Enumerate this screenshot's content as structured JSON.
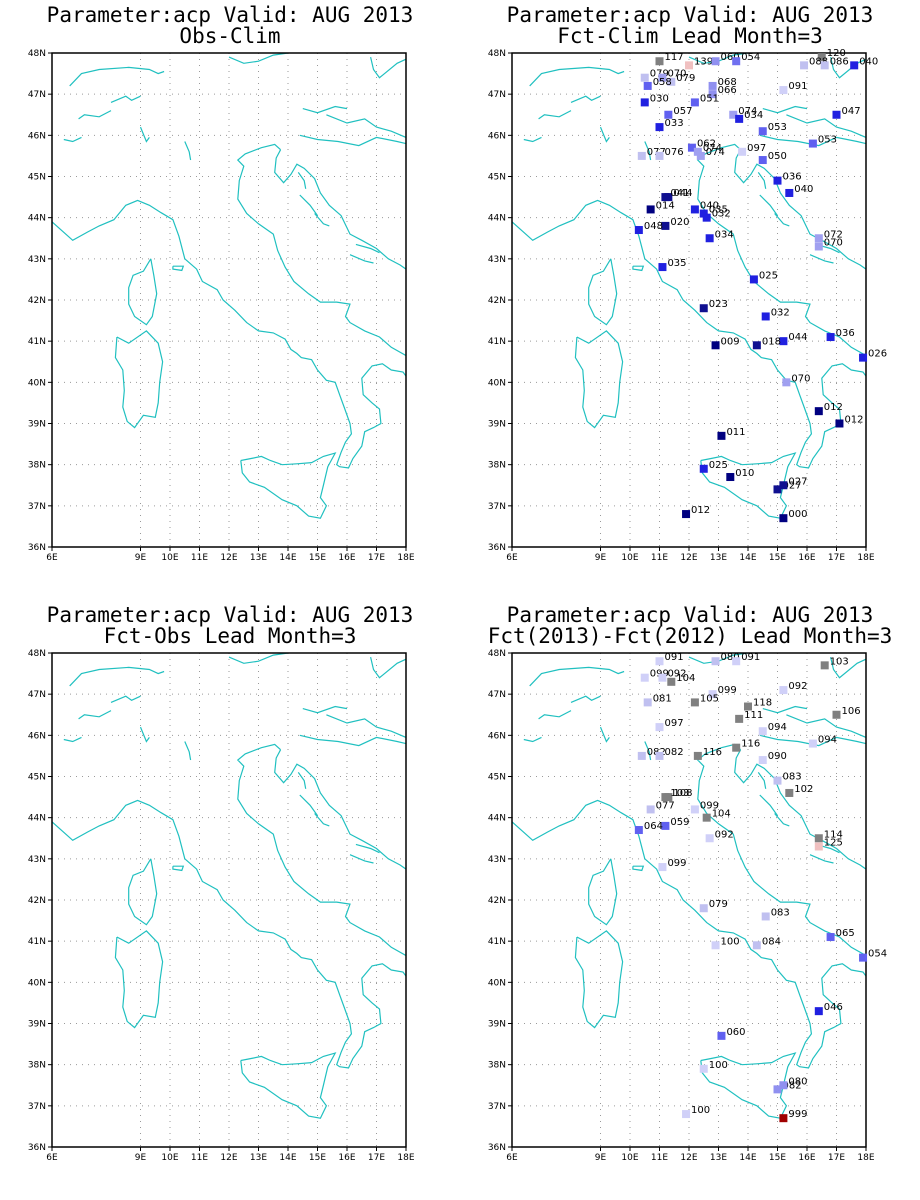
{
  "map": {
    "lon_range": [
      6,
      18
    ],
    "lat_range": [
      36,
      48
    ],
    "lon_ticks": [
      "6E",
      "9E",
      "10E",
      "11E",
      "12E",
      "13E",
      "14E",
      "15E",
      "16E",
      "17E",
      "18E"
    ],
    "lon_tick_values": [
      6,
      9,
      10,
      11,
      12,
      13,
      14,
      15,
      16,
      17,
      18
    ],
    "lat_ticks": [
      "36N",
      "37N",
      "38N",
      "39N",
      "40N",
      "41N",
      "42N",
      "43N",
      "44N",
      "45N",
      "46N",
      "47N",
      "48N"
    ],
    "lat_tick_values": [
      36,
      37,
      38,
      39,
      40,
      41,
      42,
      43,
      44,
      45,
      46,
      47,
      48
    ],
    "coast_color": "#20c0c0",
    "grid": "dotted"
  },
  "panels": [
    {
      "title1": "Parameter:acp Valid: AUG 2013",
      "title2": "Obs-Clim",
      "stations": []
    },
    {
      "title1": "Parameter:acp Valid: AUG 2013",
      "title2": "Fct-Clim Lead Month=3",
      "stations": [
        {
          "lon": 11.0,
          "lat": 47.8,
          "label": "117",
          "color": "#808080"
        },
        {
          "lon": 12.0,
          "lat": 47.7,
          "label": "139",
          "color": "#f0c0c0"
        },
        {
          "lon": 12.9,
          "lat": 47.8,
          "label": "060",
          "color": "#9090f0"
        },
        {
          "lon": 13.6,
          "lat": 47.8,
          "label": "054",
          "color": "#7070f0"
        },
        {
          "lon": 16.5,
          "lat": 47.9,
          "label": "120",
          "color": "#808080"
        },
        {
          "lon": 15.9,
          "lat": 47.7,
          "label": "088",
          "color": "#c0c0f0"
        },
        {
          "lon": 16.6,
          "lat": 47.7,
          "label": "086",
          "color": "#c0c0f0"
        },
        {
          "lon": 17.6,
          "lat": 47.7,
          "label": "040",
          "color": "#2020e0"
        },
        {
          "lon": 10.5,
          "lat": 47.4,
          "label": "079",
          "color": "#c0c0f0"
        },
        {
          "lon": 11.1,
          "lat": 47.4,
          "label": "070",
          "color": "#a0a0f0"
        },
        {
          "lon": 11.4,
          "lat": 47.3,
          "label": "079",
          "color": "#c0c0f0"
        },
        {
          "lon": 10.6,
          "lat": 47.2,
          "label": "058",
          "color": "#6060f0"
        },
        {
          "lon": 12.8,
          "lat": 47.2,
          "label": "068",
          "color": "#9090f0"
        },
        {
          "lon": 12.8,
          "lat": 47.0,
          "label": "066",
          "color": "#9090f0"
        },
        {
          "lon": 15.2,
          "lat": 47.1,
          "label": "091",
          "color": "#d0d0f8"
        },
        {
          "lon": 10.5,
          "lat": 46.8,
          "label": "030",
          "color": "#2020e0"
        },
        {
          "lon": 12.2,
          "lat": 46.8,
          "label": "051",
          "color": "#6060f0"
        },
        {
          "lon": 11.3,
          "lat": 46.5,
          "label": "057",
          "color": "#6060f0"
        },
        {
          "lon": 13.5,
          "lat": 46.5,
          "label": "074",
          "color": "#a0a0f0"
        },
        {
          "lon": 13.7,
          "lat": 46.4,
          "label": "034",
          "color": "#2020e0"
        },
        {
          "lon": 17.0,
          "lat": 46.5,
          "label": "047",
          "color": "#2020e0"
        },
        {
          "lon": 11.0,
          "lat": 46.2,
          "label": "033",
          "color": "#2020e0"
        },
        {
          "lon": 14.5,
          "lat": 46.1,
          "label": "053",
          "color": "#6060f0"
        },
        {
          "lon": 16.2,
          "lat": 45.8,
          "label": "053",
          "color": "#6060f0"
        },
        {
          "lon": 12.1,
          "lat": 45.7,
          "label": "062",
          "color": "#6060f0"
        },
        {
          "lon": 12.3,
          "lat": 45.6,
          "label": "074",
          "color": "#a0a0f0"
        },
        {
          "lon": 12.4,
          "lat": 45.5,
          "label": "074",
          "color": "#a0a0f0"
        },
        {
          "lon": 13.8,
          "lat": 45.6,
          "label": "097",
          "color": "#d0d0f8"
        },
        {
          "lon": 10.4,
          "lat": 45.5,
          "label": "077",
          "color": "#c0c0f0"
        },
        {
          "lon": 11.0,
          "lat": 45.5,
          "label": "076",
          "color": "#c0c0f0"
        },
        {
          "lon": 14.5,
          "lat": 45.4,
          "label": "050",
          "color": "#6060f0"
        },
        {
          "lon": 15.0,
          "lat": 44.9,
          "label": "036",
          "color": "#2020e0"
        },
        {
          "lon": 15.4,
          "lat": 44.6,
          "label": "040",
          "color": "#2020e0"
        },
        {
          "lon": 11.3,
          "lat": 44.5,
          "label": "044",
          "color": "#101090"
        },
        {
          "lon": 11.2,
          "lat": 44.5,
          "label": "041",
          "color": "#101090"
        },
        {
          "lon": 10.7,
          "lat": 44.2,
          "label": "014",
          "color": "#000080"
        },
        {
          "lon": 12.2,
          "lat": 44.2,
          "label": "040",
          "color": "#2020e0"
        },
        {
          "lon": 12.5,
          "lat": 44.1,
          "label": "035",
          "color": "#2020e0"
        },
        {
          "lon": 12.6,
          "lat": 44.0,
          "label": "032",
          "color": "#2020e0"
        },
        {
          "lon": 11.2,
          "lat": 43.8,
          "label": "020",
          "color": "#101090"
        },
        {
          "lon": 10.3,
          "lat": 43.7,
          "label": "048",
          "color": "#2020e0"
        },
        {
          "lon": 12.7,
          "lat": 43.5,
          "label": "034",
          "color": "#2020e0"
        },
        {
          "lon": 16.4,
          "lat": 43.5,
          "label": "072",
          "color": "#a0a0f0"
        },
        {
          "lon": 16.4,
          "lat": 43.3,
          "label": "070",
          "color": "#a0a0f0"
        },
        {
          "lon": 11.1,
          "lat": 42.8,
          "label": "035",
          "color": "#2020e0"
        },
        {
          "lon": 14.2,
          "lat": 42.5,
          "label": "025",
          "color": "#2020e0"
        },
        {
          "lon": 12.5,
          "lat": 41.8,
          "label": "023",
          "color": "#101090"
        },
        {
          "lon": 14.6,
          "lat": 41.6,
          "label": "032",
          "color": "#2020e0"
        },
        {
          "lon": 16.8,
          "lat": 41.1,
          "label": "036",
          "color": "#2020e0"
        },
        {
          "lon": 15.2,
          "lat": 41.0,
          "label": "044",
          "color": "#2020e0"
        },
        {
          "lon": 12.9,
          "lat": 40.9,
          "label": "009",
          "color": "#000080"
        },
        {
          "lon": 14.3,
          "lat": 40.9,
          "label": "018",
          "color": "#101090"
        },
        {
          "lon": 17.9,
          "lat": 40.6,
          "label": "026",
          "color": "#2020e0"
        },
        {
          "lon": 15.3,
          "lat": 40.0,
          "label": "070",
          "color": "#a0a0f0"
        },
        {
          "lon": 16.4,
          "lat": 39.3,
          "label": "012",
          "color": "#000080"
        },
        {
          "lon": 17.1,
          "lat": 39.0,
          "label": "012",
          "color": "#000080"
        },
        {
          "lon": 13.1,
          "lat": 38.7,
          "label": "011",
          "color": "#000080"
        },
        {
          "lon": 12.5,
          "lat": 37.9,
          "label": "025",
          "color": "#2020e0"
        },
        {
          "lon": 13.4,
          "lat": 37.7,
          "label": "010",
          "color": "#000080"
        },
        {
          "lon": 15.0,
          "lat": 37.4,
          "label": "027",
          "color": "#101090"
        },
        {
          "lon": 15.2,
          "lat": 37.5,
          "label": "027",
          "color": "#101090"
        },
        {
          "lon": 11.9,
          "lat": 36.8,
          "label": "012",
          "color": "#000080"
        },
        {
          "lon": 15.2,
          "lat": 36.7,
          "label": "000",
          "color": "#000080"
        }
      ]
    },
    {
      "title1": "Parameter:acp Valid: AUG 2013",
      "title2": "Fct-Obs Lead Month=3",
      "stations": []
    },
    {
      "title1": "Parameter:acp Valid: AUG 2013",
      "title2": "Fct(2013)-Fct(2012) Lead Month=3",
      "stations": [
        {
          "lon": 11.0,
          "lat": 47.8,
          "label": "091",
          "color": "#d0d0f8"
        },
        {
          "lon": 12.9,
          "lat": 47.8,
          "label": "080",
          "color": "#c0c0f0"
        },
        {
          "lon": 13.6,
          "lat": 47.8,
          "label": "091",
          "color": "#d0d0f8"
        },
        {
          "lon": 16.6,
          "lat": 47.7,
          "label": "103",
          "color": "#808080"
        },
        {
          "lon": 10.5,
          "lat": 47.4,
          "label": "099",
          "color": "#d0d0f8"
        },
        {
          "lon": 11.1,
          "lat": 47.4,
          "label": "092",
          "color": "#d0d0f8"
        },
        {
          "lon": 11.4,
          "lat": 47.3,
          "label": "104",
          "color": "#808080"
        },
        {
          "lon": 12.8,
          "lat": 47.0,
          "label": "099",
          "color": "#d0d0f8"
        },
        {
          "lon": 15.2,
          "lat": 47.1,
          "label": "092",
          "color": "#d0d0f8"
        },
        {
          "lon": 10.6,
          "lat": 46.8,
          "label": "081",
          "color": "#c0c0f0"
        },
        {
          "lon": 12.2,
          "lat": 46.8,
          "label": "105",
          "color": "#808080"
        },
        {
          "lon": 14.0,
          "lat": 46.7,
          "label": "118",
          "color": "#808080"
        },
        {
          "lon": 13.7,
          "lat": 46.4,
          "label": "111",
          "color": "#808080"
        },
        {
          "lon": 17.0,
          "lat": 46.5,
          "label": "106",
          "color": "#808080"
        },
        {
          "lon": 11.0,
          "lat": 46.2,
          "label": "097",
          "color": "#d0d0f8"
        },
        {
          "lon": 14.5,
          "lat": 46.1,
          "label": "094",
          "color": "#d0d0f8"
        },
        {
          "lon": 16.2,
          "lat": 45.8,
          "label": "094",
          "color": "#d0d0f8"
        },
        {
          "lon": 12.3,
          "lat": 45.5,
          "label": "116",
          "color": "#808080"
        },
        {
          "lon": 13.6,
          "lat": 45.7,
          "label": "116",
          "color": "#808080"
        },
        {
          "lon": 10.4,
          "lat": 45.5,
          "label": "082",
          "color": "#c0c0f0"
        },
        {
          "lon": 11.0,
          "lat": 45.5,
          "label": "082",
          "color": "#c0c0f0"
        },
        {
          "lon": 14.5,
          "lat": 45.4,
          "label": "090",
          "color": "#d0d0f8"
        },
        {
          "lon": 15.0,
          "lat": 44.9,
          "label": "083",
          "color": "#c0c0f0"
        },
        {
          "lon": 15.4,
          "lat": 44.6,
          "label": "102",
          "color": "#808080"
        },
        {
          "lon": 11.3,
          "lat": 44.5,
          "label": "108",
          "color": "#808080"
        },
        {
          "lon": 11.2,
          "lat": 44.5,
          "label": "103",
          "color": "#808080"
        },
        {
          "lon": 10.7,
          "lat": 44.2,
          "label": "077",
          "color": "#c0c0f0"
        },
        {
          "lon": 12.2,
          "lat": 44.2,
          "label": "099",
          "color": "#d0d0f8"
        },
        {
          "lon": 12.6,
          "lat": 44.0,
          "label": "104",
          "color": "#808080"
        },
        {
          "lon": 11.2,
          "lat": 43.8,
          "label": "059",
          "color": "#6060f0"
        },
        {
          "lon": 10.3,
          "lat": 43.7,
          "label": "064",
          "color": "#6060f0"
        },
        {
          "lon": 12.7,
          "lat": 43.5,
          "label": "092",
          "color": "#d0d0f8"
        },
        {
          "lon": 16.4,
          "lat": 43.5,
          "label": "114",
          "color": "#808080"
        },
        {
          "lon": 16.4,
          "lat": 43.3,
          "label": "125",
          "color": "#f0c0c0"
        },
        {
          "lon": 11.1,
          "lat": 42.8,
          "label": "099",
          "color": "#d0d0f8"
        },
        {
          "lon": 12.5,
          "lat": 41.8,
          "label": "079",
          "color": "#c0c0f0"
        },
        {
          "lon": 14.6,
          "lat": 41.6,
          "label": "083",
          "color": "#c0c0f0"
        },
        {
          "lon": 16.8,
          "lat": 41.1,
          "label": "065",
          "color": "#6060f0"
        },
        {
          "lon": 12.9,
          "lat": 40.9,
          "label": "100",
          "color": "#d0d0f8"
        },
        {
          "lon": 14.3,
          "lat": 40.9,
          "label": "084",
          "color": "#c0c0f0"
        },
        {
          "lon": 17.9,
          "lat": 40.6,
          "label": "054",
          "color": "#6060f0"
        },
        {
          "lon": 16.4,
          "lat": 39.3,
          "label": "046",
          "color": "#2020e0"
        },
        {
          "lon": 13.1,
          "lat": 38.7,
          "label": "060",
          "color": "#6060f0"
        },
        {
          "lon": 12.5,
          "lat": 37.9,
          "label": "100",
          "color": "#d0d0f8"
        },
        {
          "lon": 15.0,
          "lat": 37.4,
          "label": "082",
          "color": "#9090f0"
        },
        {
          "lon": 15.2,
          "lat": 37.5,
          "label": "080",
          "color": "#9090f0"
        },
        {
          "lon": 11.9,
          "lat": 36.8,
          "label": "100",
          "color": "#d0d0f8"
        },
        {
          "lon": 15.2,
          "lat": 36.7,
          "label": "999",
          "color": "#a00000"
        }
      ]
    }
  ]
}
